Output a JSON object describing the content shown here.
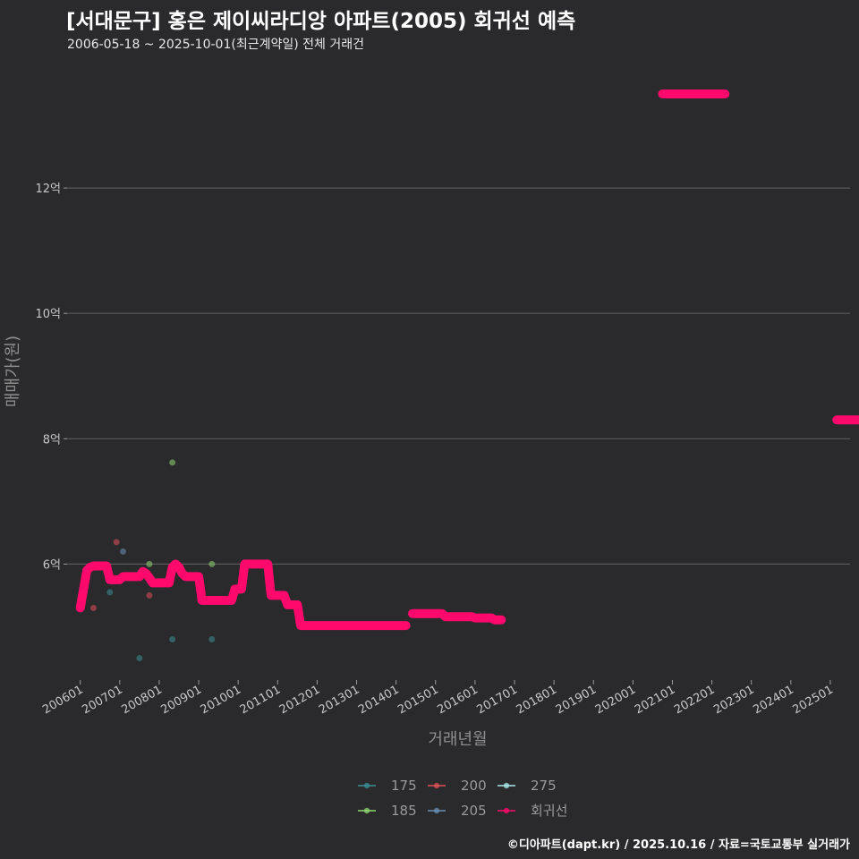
{
  "header": {
    "title": "[서대문구] 홍은 제이씨라디앙 아파트(2005) 회귀선 예측",
    "subtitle": "2006-05-18 ~ 2025-10-01(최근계약일) 전체 거래건"
  },
  "caption": "©디아파트(dapt.kr) / 2025.10.16 / 자료=국토교통부 실거래가",
  "colors": {
    "background": "#2a292b",
    "grid": "#5a5a5a",
    "regression": "#ff0a6c",
    "s175": "#3a8f95",
    "s185": "#8fd873",
    "s200": "#e0505a",
    "s205": "#6a8fb8",
    "s275": "#a8e8e8"
  },
  "chart_data": {
    "type": "scatter",
    "title": "[서대문구] 홍은 제이씨라디앙 아파트(2005) 회귀선 예측",
    "xlabel": "거래년월",
    "ylabel": "매매가(원)",
    "x_unit": "months since 2006-01",
    "xlim": [
      -4,
      234
    ],
    "ylim": [
      4.15,
      14.0
    ],
    "y_ticks": [
      {
        "value": 6,
        "label": "6억"
      },
      {
        "value": 8,
        "label": "8억"
      },
      {
        "value": 10,
        "label": "10억"
      },
      {
        "value": 12,
        "label": "12억"
      }
    ],
    "x_ticks": [
      {
        "value": 0,
        "label": "200601"
      },
      {
        "value": 12,
        "label": "200701"
      },
      {
        "value": 24,
        "label": "200801"
      },
      {
        "value": 36,
        "label": "200901"
      },
      {
        "value": 48,
        "label": "201001"
      },
      {
        "value": 60,
        "label": "201101"
      },
      {
        "value": 72,
        "label": "201201"
      },
      {
        "value": 84,
        "label": "201301"
      },
      {
        "value": 96,
        "label": "201401"
      },
      {
        "value": 108,
        "label": "201501"
      },
      {
        "value": 120,
        "label": "201601"
      },
      {
        "value": 132,
        "label": "201701"
      },
      {
        "value": 144,
        "label": "201801"
      },
      {
        "value": 156,
        "label": "201901"
      },
      {
        "value": 168,
        "label": "202001"
      },
      {
        "value": 180,
        "label": "202101"
      },
      {
        "value": 192,
        "label": "202201"
      },
      {
        "value": 204,
        "label": "202301"
      },
      {
        "value": 216,
        "label": "202401"
      },
      {
        "value": 228,
        "label": "202501"
      }
    ],
    "legend": {
      "position": "bottom",
      "items": [
        {
          "label": "175",
          "key": "s175"
        },
        {
          "label": "200",
          "key": "s200"
        },
        {
          "label": "275",
          "key": "s275"
        },
        {
          "label": "185",
          "key": "s185"
        },
        {
          "label": "205",
          "key": "s205"
        },
        {
          "label": "회귀선",
          "key": "regression"
        }
      ]
    },
    "series": [
      {
        "name": "175",
        "key": "s175",
        "points": [
          [
            9,
            5.55
          ],
          [
            18,
            4.5
          ],
          [
            28,
            4.8
          ],
          [
            40,
            4.8
          ]
        ]
      },
      {
        "name": "185",
        "key": "s185",
        "points": [
          [
            21,
            6.0
          ],
          [
            28,
            7.62
          ],
          [
            40,
            6.0
          ]
        ]
      },
      {
        "name": "200",
        "key": "s200",
        "points": [
          [
            4,
            5.3
          ],
          [
            11,
            6.35
          ],
          [
            21,
            5.5
          ]
        ]
      },
      {
        "name": "205",
        "key": "s205",
        "points": [
          [
            13,
            6.2
          ],
          [
            118,
            5.15
          ]
        ]
      },
      {
        "name": "275",
        "key": "s275",
        "points": []
      }
    ],
    "regression": {
      "name": "회귀선",
      "segments": [
        [
          [
            0,
            5.3
          ],
          [
            1,
            5.6
          ],
          [
            2,
            5.9
          ],
          [
            3,
            5.95
          ],
          [
            4,
            5.97
          ],
          [
            8,
            5.97
          ],
          [
            9,
            5.75
          ],
          [
            12,
            5.75
          ],
          [
            13,
            5.8
          ],
          [
            18,
            5.8
          ],
          [
            19,
            5.88
          ],
          [
            20,
            5.85
          ],
          [
            21,
            5.78
          ],
          [
            22,
            5.7
          ],
          [
            27,
            5.7
          ],
          [
            28,
            5.95
          ],
          [
            29,
            6.0
          ],
          [
            30,
            5.95
          ],
          [
            31,
            5.85
          ],
          [
            32,
            5.8
          ],
          [
            36,
            5.8
          ],
          [
            37,
            5.42
          ],
          [
            46,
            5.42
          ],
          [
            47,
            5.6
          ],
          [
            49,
            5.6
          ],
          [
            50,
            6.0
          ],
          [
            57,
            6.0
          ],
          [
            58,
            5.5
          ],
          [
            62,
            5.5
          ],
          [
            63,
            5.35
          ],
          [
            66,
            5.35
          ],
          [
            67,
            5.02
          ],
          [
            99,
            5.02
          ]
        ],
        [
          [
            101,
            5.21
          ],
          [
            110,
            5.21
          ],
          [
            111,
            5.16
          ],
          [
            119,
            5.16
          ],
          [
            120,
            5.14
          ],
          [
            125,
            5.14
          ],
          [
            126,
            5.11
          ],
          [
            128,
            5.11
          ]
        ],
        [
          [
            177,
            13.5
          ],
          [
            196,
            13.5
          ]
        ],
        [
          [
            230,
            8.3
          ],
          [
            240,
            8.3
          ]
        ]
      ]
    }
  }
}
